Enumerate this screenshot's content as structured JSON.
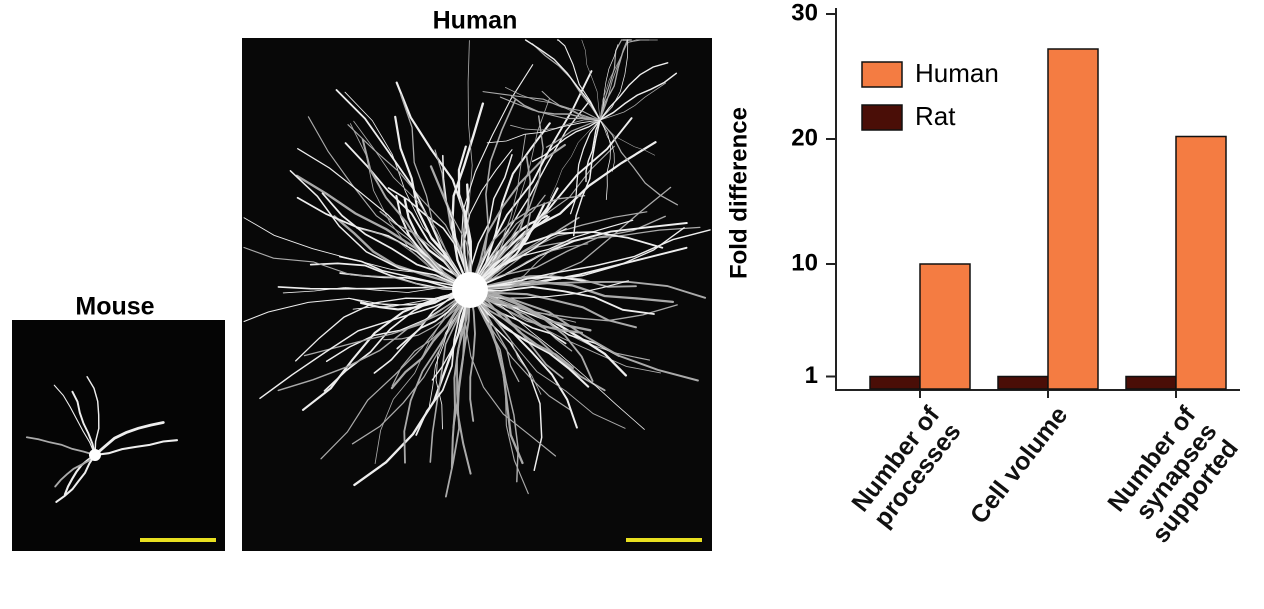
{
  "panels": [
    {
      "label": "Mouse"
    },
    {
      "label": "Human"
    }
  ],
  "chart_data": {
    "type": "bar",
    "y_label": "Fold difference",
    "categories": [
      "Number of\nprocesses",
      "Cell volume",
      "Number of\nsynapses\nsupported"
    ],
    "series": [
      {
        "name": "Rat",
        "color": "#4a0e07",
        "values": [
          1,
          1,
          1
        ]
      },
      {
        "name": "Human",
        "color": "#f47c42",
        "values": [
          10,
          27.2,
          20.2
        ]
      }
    ],
    "legend_order": [
      "Human",
      "Rat"
    ],
    "ylim": [
      0,
      30
    ],
    "yticks": [
      1,
      10,
      20,
      30
    ],
    "grid": false
  }
}
